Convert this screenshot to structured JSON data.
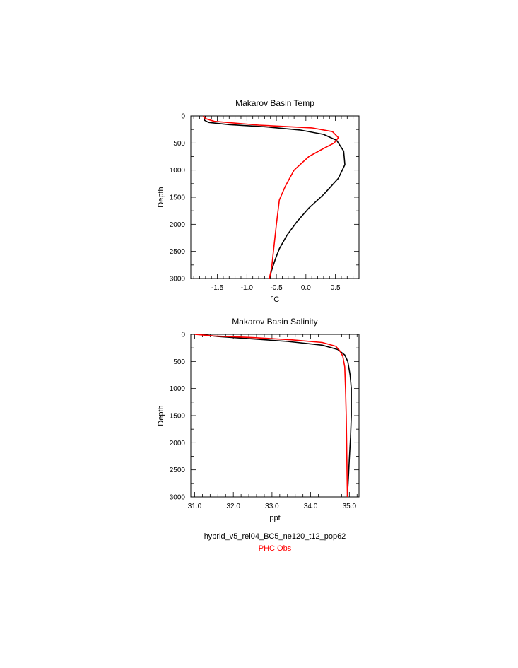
{
  "chart_data": [
    {
      "type": "line",
      "title": "Makarov Basin Temp",
      "xlabel": "°C",
      "ylabel": "Depth",
      "xlim": [
        -1.95,
        0.9
      ],
      "ylim": [
        3000,
        0
      ],
      "xticks": [
        "-1.5",
        "-1.0",
        "-0.5",
        "0.0",
        "0.5"
      ],
      "xtick_values": [
        -1.5,
        -1.0,
        -0.5,
        0.0,
        0.5
      ],
      "yticks": [
        "0",
        "500",
        "1000",
        "1500",
        "2000",
        "2500",
        "3000"
      ],
      "ytick_values": [
        0,
        500,
        1000,
        1500,
        2000,
        2500,
        3000
      ],
      "series": [
        {
          "name": "hybrid_v5_rel04_BC5_ne120_t12_pop62",
          "color": "#000000",
          "x": [
            -1.7,
            -1.72,
            -1.65,
            -1.3,
            -0.7,
            -0.1,
            0.3,
            0.52,
            0.64,
            0.66,
            0.55,
            0.3,
            0.05,
            -0.15,
            -0.32,
            -0.45,
            -0.52,
            -0.58,
            -0.62
          ],
          "y": [
            0,
            80,
            120,
            160,
            200,
            260,
            340,
            450,
            650,
            900,
            1150,
            1450,
            1700,
            1950,
            2200,
            2450,
            2650,
            2850,
            3000
          ]
        },
        {
          "name": "PHC Obs",
          "color": "#ff0000",
          "x": [
            -1.74,
            -1.7,
            -1.55,
            -0.8,
            0.1,
            0.45,
            0.55,
            0.48,
            0.3,
            0.05,
            -0.2,
            -0.35,
            -0.45,
            -0.5,
            -0.55,
            -0.58,
            -0.62
          ],
          "y": [
            0,
            50,
            100,
            170,
            220,
            290,
            400,
            500,
            600,
            750,
            1000,
            1300,
            1550,
            2000,
            2500,
            2800,
            3000
          ]
        }
      ]
    },
    {
      "type": "line",
      "title": "Makarov Basin Salinity",
      "xlabel": "ppt",
      "ylabel": "Depth",
      "xlim": [
        30.9,
        35.25
      ],
      "ylim": [
        3000,
        0
      ],
      "xticks": [
        "31.0",
        "32.0",
        "33.0",
        "34.0",
        "35.0"
      ],
      "xtick_values": [
        31.0,
        32.0,
        33.0,
        34.0,
        35.0
      ],
      "yticks": [
        "0",
        "500",
        "1000",
        "1500",
        "2000",
        "2500",
        "3000"
      ],
      "ytick_values": [
        0,
        500,
        1000,
        1500,
        2000,
        2500,
        3000
      ],
      "series": [
        {
          "name": "hybrid_v5_rel04_BC5_ne120_t12_pop62",
          "color": "#000000",
          "x": [
            31.1,
            31.6,
            32.4,
            33.4,
            34.3,
            34.7,
            34.88,
            34.96,
            35.02,
            35.05,
            35.05,
            35.03,
            35.0,
            34.98,
            34.96,
            34.95
          ],
          "y": [
            0,
            40,
            80,
            130,
            200,
            280,
            380,
            500,
            750,
            1000,
            1500,
            1900,
            2300,
            2600,
            2850,
            3000
          ]
        },
        {
          "name": "PHC Obs",
          "color": "#ff0000",
          "x": [
            31.0,
            31.5,
            32.5,
            33.5,
            34.3,
            34.65,
            34.75,
            34.83,
            34.88,
            34.9,
            34.92,
            34.93,
            34.94,
            34.95
          ],
          "y": [
            0,
            30,
            60,
            100,
            150,
            220,
            300,
            400,
            600,
            1000,
            1500,
            2000,
            2500,
            3000
          ]
        }
      ]
    }
  ],
  "legend": {
    "line1": "hybrid_v5_rel04_BC5_ne120_t12_pop62",
    "line2": "PHC Obs",
    "line2_color": "#ff0000"
  }
}
